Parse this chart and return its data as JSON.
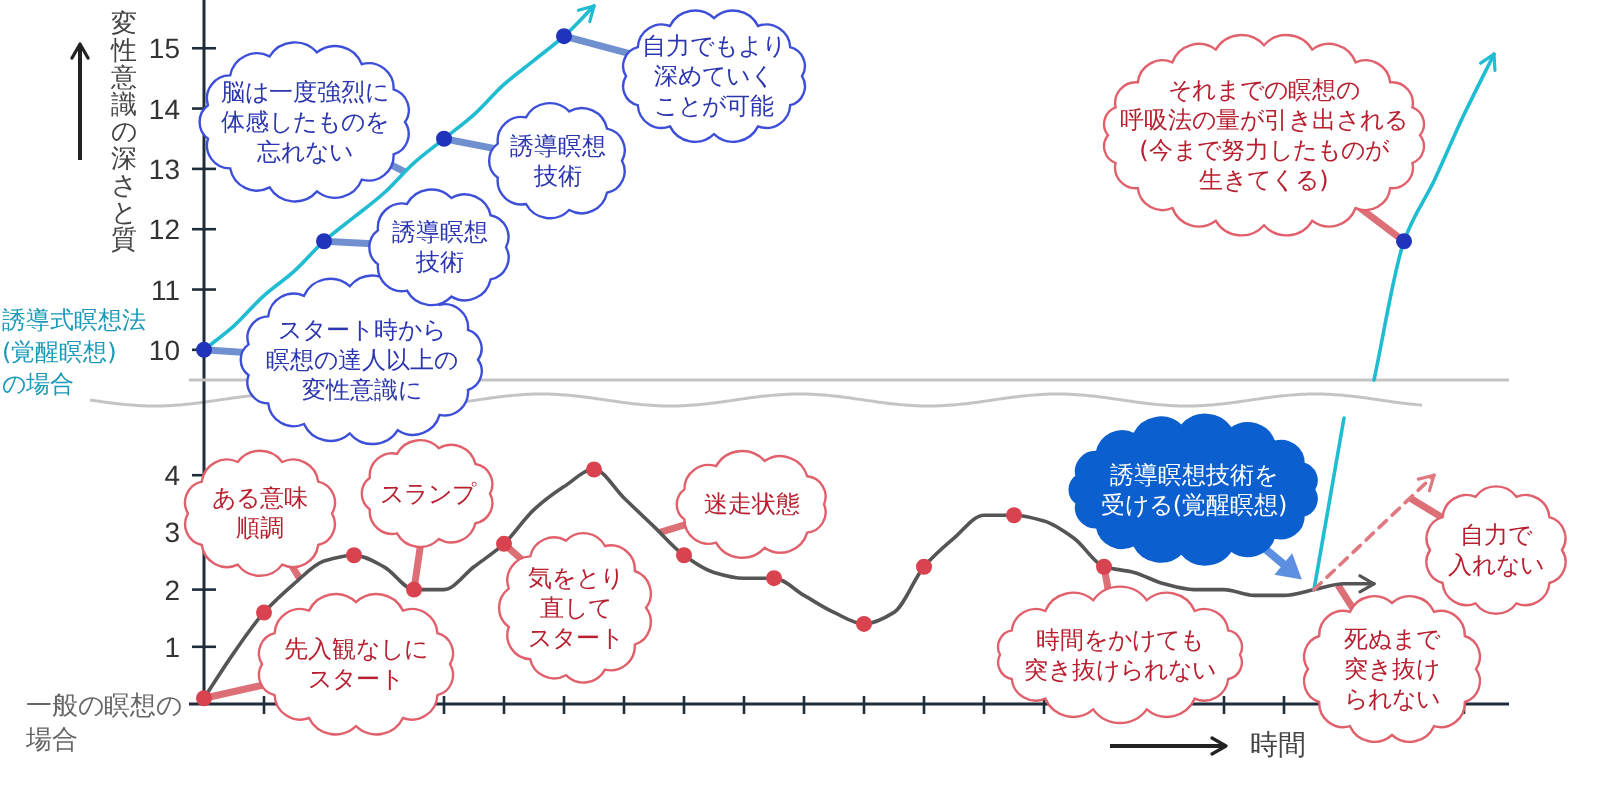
{
  "chart_data": [
    {
      "type": "line",
      "ylabel": "変性意識の深さと質",
      "categories": [
        null,
        null,
        null,
        null,
        null,
        null,
        null,
        null,
        null,
        null,
        null,
        null,
        null,
        null,
        null,
        null,
        null,
        null,
        null,
        null,
        null,
        null,
        null,
        null,
        null,
        null,
        null,
        null,
        null,
        null,
        null,
        null,
        null,
        null,
        null,
        null,
        null,
        null,
        null,
        null,
        null,
        null,
        null,
        null
      ],
      "ylim": [
        9.5,
        15.8
      ],
      "yticks": [
        10,
        11,
        12,
        13,
        14,
        15
      ],
      "tick_labels": "y",
      "series": [
        {
          "color": "#1fbcd2",
          "values": [
            10.0,
            10.4,
            10.9,
            11.3,
            11.8,
            12.2,
            12.6,
            13.1,
            13.5,
            13.9,
            14.4,
            14.8,
            15.2,
            15.7,
            null,
            null,
            null,
            null,
            null,
            null,
            null,
            null,
            null,
            null,
            null,
            null,
            null,
            null,
            null,
            null,
            null,
            null,
            null,
            null,
            null,
            null,
            null,
            null,
            null,
            null,
            null,
            null,
            null,
            null
          ]
        },
        {
          "color": "#1fbcd2",
          "values": [
            null,
            null,
            null,
            null,
            null,
            null,
            null,
            null,
            null,
            null,
            null,
            null,
            null,
            null,
            null,
            null,
            null,
            null,
            null,
            null,
            null,
            null,
            null,
            null,
            null,
            null,
            null,
            null,
            null,
            null,
            null,
            null,
            null,
            null,
            null,
            null,
            null,
            null,
            null,
            9.5,
            11.8,
            12.8,
            13.9,
            14.9
          ]
        },
        {
          "type": "scatter",
          "marker": "circle",
          "color": "#2233bb",
          "values": [
            10.0,
            null,
            null,
            null,
            11.8,
            null,
            null,
            null,
            13.5,
            null,
            null,
            null,
            15.2,
            null,
            null,
            null,
            null,
            null,
            null,
            null,
            null,
            null,
            null,
            null,
            null,
            null,
            null,
            null,
            null,
            null,
            null,
            null,
            null,
            null,
            null,
            null,
            null,
            null,
            null,
            null,
            11.8,
            null,
            null,
            null
          ]
        }
      ],
      "annotations": [
        "スタート時から瞑想の達人以上の変性意識に",
        "誘導瞑想技術",
        "脳は一度強烈に体感したものを忘れない",
        "誘導瞑想技術",
        "自力でもより深めていくことが可能",
        "それまでの瞑想の呼吸法の量が引き出される(今まで努力したものが生きてくる)",
        "誘導式瞑想法(覚醒瞑想)の場合"
      ]
    },
    {
      "type": "line",
      "xlabel": "時間",
      "categories": [
        null,
        null,
        null,
        null,
        null,
        null,
        null,
        null,
        null,
        null,
        null,
        null,
        null,
        null,
        null,
        null,
        null,
        null,
        null,
        null,
        null,
        null,
        null,
        null,
        null,
        null,
        null,
        null,
        null,
        null,
        null,
        null,
        null,
        null,
        null,
        null,
        null,
        null,
        null,
        null,
        null,
        null,
        null,
        null
      ],
      "ylim": [
        0,
        5
      ],
      "yticks": [
        1,
        2,
        3,
        4
      ],
      "tick_labels": "y",
      "series": [
        {
          "color": "#555555",
          "values": [
            0.1,
            0.9,
            1.6,
            2.1,
            2.5,
            2.6,
            2.4,
            2.0,
            2.0,
            2.4,
            2.8,
            3.4,
            3.8,
            4.1,
            3.6,
            3.1,
            2.6,
            2.3,
            2.2,
            2.2,
            1.9,
            1.6,
            1.4,
            1.6,
            2.4,
            2.9,
            3.3,
            3.3,
            3.2,
            2.9,
            2.4,
            2.3,
            2.1,
            2.0,
            2.0,
            1.9,
            1.9,
            2.0,
            2.1,
            2.1,
            null,
            null,
            null,
            null
          ]
        },
        {
          "color": "#1fbcd2",
          "values": [
            null,
            null,
            null,
            null,
            null,
            null,
            null,
            null,
            null,
            null,
            null,
            null,
            null,
            null,
            null,
            null,
            null,
            null,
            null,
            null,
            null,
            null,
            null,
            null,
            null,
            null,
            null,
            null,
            null,
            null,
            null,
            null,
            null,
            null,
            null,
            null,
            null,
            2.0,
            5.0,
            null,
            null,
            null,
            null,
            null
          ]
        },
        {
          "color": "#e07880",
          "line_style": "dashed",
          "values": [
            null,
            null,
            null,
            null,
            null,
            null,
            null,
            null,
            null,
            null,
            null,
            null,
            null,
            null,
            null,
            null,
            null,
            null,
            null,
            null,
            null,
            null,
            null,
            null,
            null,
            null,
            null,
            null,
            null,
            null,
            null,
            null,
            null,
            null,
            null,
            null,
            null,
            2.0,
            2.5,
            3.0,
            3.5,
            4.0,
            null,
            null
          ]
        },
        {
          "type": "scatter",
          "marker": "circle",
          "color": "#d9434f",
          "values": [
            0.1,
            null,
            1.6,
            null,
            null,
            2.6,
            null,
            2.0,
            null,
            null,
            2.8,
            null,
            null,
            4.1,
            null,
            null,
            2.6,
            null,
            null,
            2.2,
            null,
            null,
            1.4,
            null,
            2.4,
            null,
            null,
            3.3,
            null,
            null,
            2.4,
            null,
            null,
            null,
            null,
            null,
            null,
            null,
            null,
            null,
            null,
            null,
            null,
            null
          ]
        }
      ],
      "annotations": [
        "先入観なしにスタート",
        "ある意味順調",
        "スランプ",
        "気をとり直してスタート",
        "迷走状態",
        "時間をかけても突き抜けられない",
        "誘導瞑想技術を受ける(覚醒瞑想)",
        "死ぬまで突き抜けられない",
        "自力で入れない",
        "一般の瞑想の場合"
      ]
    }
  ]
}
